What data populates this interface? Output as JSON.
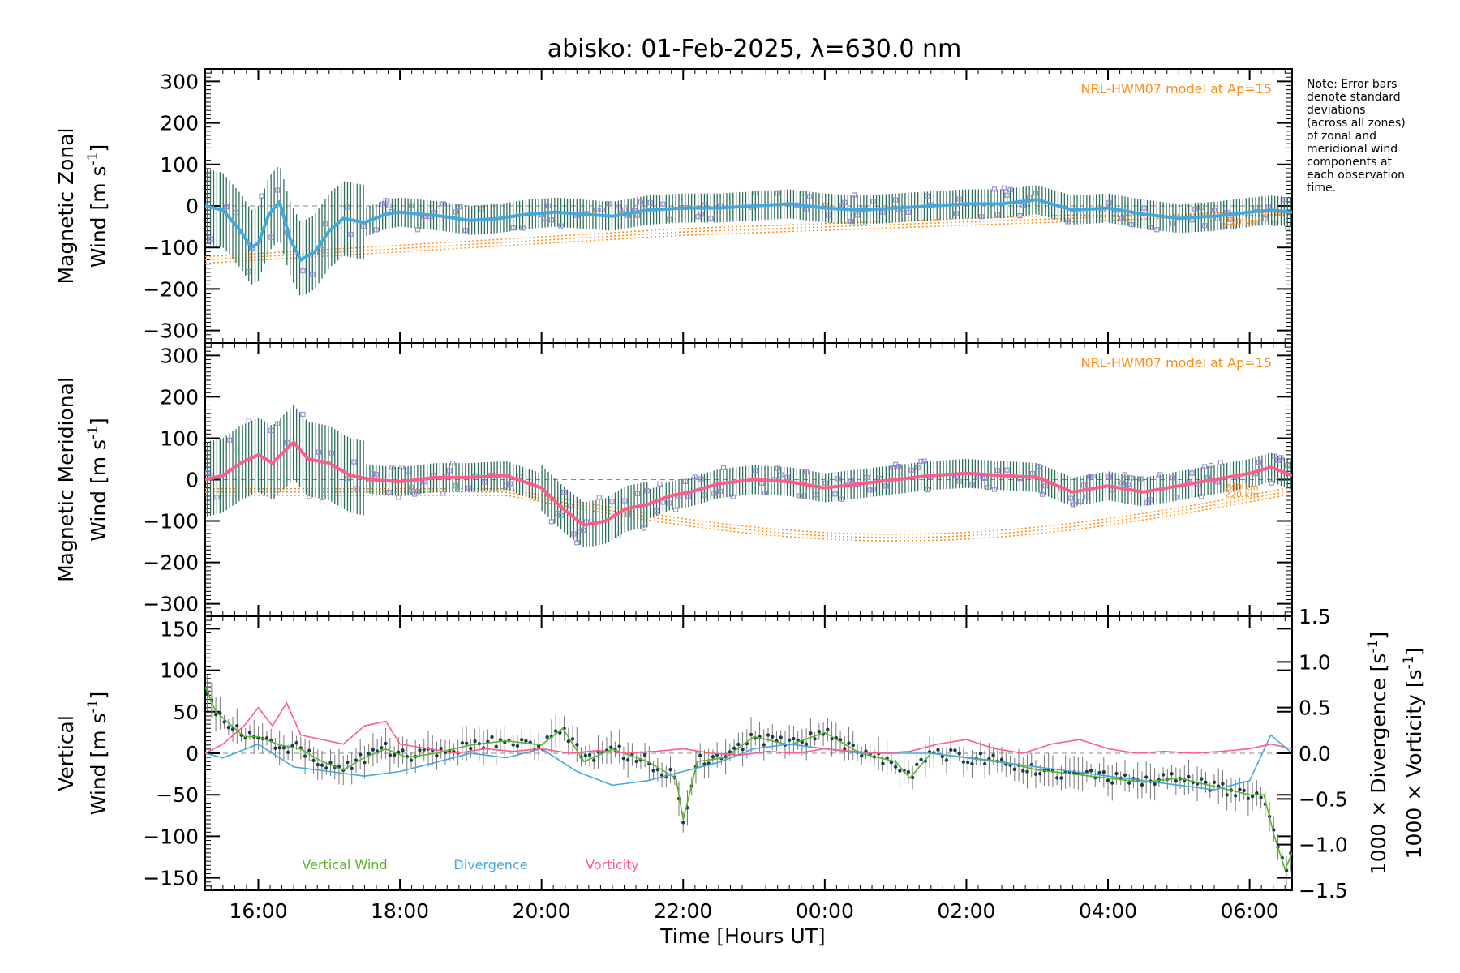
{
  "title": "abisko: 01-Feb-2025, λ=630.0 nm",
  "note": [
    "Note: Error bars",
    "denote standard",
    "deviations",
    "(across all zones)",
    "of zonal and",
    "meridional wind",
    "components at",
    "each observation",
    "time."
  ],
  "colors": {
    "zonal": "#44a8dc",
    "meridional": "#ff5c8a",
    "vertical": "#5ab42a",
    "divergence": "#44a8dc",
    "vorticity": "#ff5c8a",
    "model": "#ff8c1a",
    "zones": "#9b8fdc",
    "errorbar": "#2f6e5a"
  },
  "x_axis": {
    "label": "Time [Hours UT]",
    "range_hours": [
      15.25,
      30.6
    ],
    "ticks": [
      {
        "h": 16,
        "label": "16:00"
      },
      {
        "h": 18,
        "label": "18:00"
      },
      {
        "h": 20,
        "label": "20:00"
      },
      {
        "h": 22,
        "label": "22:00"
      },
      {
        "h": 24,
        "label": "00:00"
      },
      {
        "h": 26,
        "label": "02:00"
      },
      {
        "h": 28,
        "label": "04:00"
      },
      {
        "h": 30,
        "label": "06:00"
      }
    ]
  },
  "panels": {
    "zonal": {
      "ylabel_line1": "Magnetic Zonal",
      "ylabel_line2": "Wind [m s",
      "ylabel_sup": "-1",
      "ylabel_end": "]",
      "ylim": [
        -330,
        330
      ],
      "yticks": [
        300,
        200,
        100,
        0,
        -100,
        -200,
        -300
      ],
      "model_label": "NRL-HWM07 model at Ap=15",
      "alt_labels": [
        "220 km"
      ]
    },
    "meridional": {
      "ylabel_line1": "Magnetic Meridional",
      "ylabel_line2": "Wind [m s",
      "ylabel_sup": "-1",
      "ylabel_end": "]",
      "ylim": [
        -330,
        330
      ],
      "yticks": [
        300,
        200,
        100,
        0,
        -100,
        -200,
        -300
      ],
      "model_label": "NRL-HWM07 model at Ap=15",
      "alt_labels": [
        "240 km",
        "220 km"
      ]
    },
    "vertical": {
      "ylabel_line1": "Vertical",
      "ylabel_line2": "Wind [m s",
      "ylabel_sup": "-1",
      "ylabel_end": "]",
      "ylim": [
        -165,
        165
      ],
      "yticks": [
        150,
        100,
        50,
        0,
        -50,
        -100,
        -150
      ],
      "right_ylim": [
        -1.5,
        1.5
      ],
      "right_yticks": [
        {
          "v": 1.5,
          "label": "1.5"
        },
        {
          "v": 1.0,
          "label": "1.0"
        },
        {
          "v": 0.5,
          "label": "0.5"
        },
        {
          "v": 0.0,
          "label": "0.0"
        },
        {
          "v": -0.5,
          "label": "−0.5"
        },
        {
          "v": -1.0,
          "label": "−1.0"
        },
        {
          "v": -1.5,
          "label": "−1.5"
        }
      ],
      "right_label_div": "1000 × Divergence [s",
      "right_label_vor": "1000 × Vorticity [s",
      "right_sup": "-1",
      "right_end": "]",
      "legend": [
        "Vertical Wind",
        "Divergence",
        "Vorticity"
      ]
    }
  },
  "chart_data": [
    {
      "type": "line",
      "name": "Magnetic Zonal Wind",
      "x_hours": [
        15.25,
        15.5,
        15.75,
        15.9,
        16.0,
        16.15,
        16.3,
        16.45,
        16.6,
        16.8,
        17.0,
        17.2,
        17.5,
        17.8,
        18.0,
        18.3,
        18.6,
        19.0,
        19.4,
        19.8,
        20.2,
        20.6,
        21.0,
        21.5,
        22.0,
        22.5,
        23.0,
        23.5,
        24.0,
        24.5,
        25.0,
        25.5,
        26.0,
        26.5,
        27.0,
        27.5,
        28.0,
        28.5,
        29.0,
        29.5,
        30.0,
        30.3,
        30.6
      ],
      "y": [
        0,
        -10,
        -60,
        -100,
        -90,
        -20,
        10,
        -80,
        -130,
        -110,
        -60,
        -30,
        -40,
        -20,
        -15,
        -20,
        -25,
        -35,
        -30,
        -20,
        -15,
        -20,
        -25,
        -10,
        -5,
        -5,
        0,
        5,
        -5,
        -10,
        -5,
        0,
        5,
        5,
        15,
        -10,
        -5,
        -20,
        -30,
        -25,
        -15,
        -10,
        -15
      ]
    },
    {
      "type": "line",
      "name": "Magnetic Meridional Wind",
      "x_hours": [
        15.25,
        15.5,
        15.75,
        16.0,
        16.2,
        16.5,
        16.7,
        17.0,
        17.3,
        17.6,
        18.0,
        18.5,
        19.0,
        19.5,
        20.0,
        20.3,
        20.6,
        20.9,
        21.2,
        21.5,
        21.8,
        22.1,
        22.5,
        23.0,
        23.5,
        24.0,
        24.5,
        25.0,
        25.5,
        26.0,
        26.5,
        27.0,
        27.5,
        28.0,
        28.5,
        29.0,
        29.5,
        30.0,
        30.3,
        30.6
      ],
      "y": [
        0,
        10,
        40,
        60,
        40,
        90,
        50,
        40,
        10,
        0,
        -5,
        5,
        5,
        10,
        -20,
        -70,
        -110,
        -100,
        -70,
        -60,
        -40,
        -30,
        -10,
        0,
        -5,
        -20,
        -10,
        0,
        10,
        15,
        10,
        5,
        -30,
        -15,
        -30,
        -15,
        0,
        15,
        30,
        10
      ]
    },
    {
      "type": "line",
      "name": "Vertical Wind",
      "x_hours": [
        15.25,
        15.4,
        15.6,
        15.8,
        16.0,
        16.3,
        16.6,
        16.9,
        17.2,
        17.5,
        17.8,
        18.1,
        18.5,
        19.0,
        19.5,
        20.0,
        20.3,
        20.6,
        21.0,
        21.5,
        21.9,
        22.0,
        22.2,
        22.6,
        23.0,
        23.5,
        24.0,
        24.5,
        25.0,
        25.2,
        25.5,
        26.0,
        26.5,
        27.0,
        27.5,
        28.0,
        28.5,
        29.0,
        29.5,
        30.0,
        30.2,
        30.35,
        30.5,
        30.6
      ],
      "y": [
        80,
        50,
        35,
        20,
        20,
        10,
        5,
        -10,
        -20,
        -5,
        5,
        -5,
        0,
        10,
        15,
        10,
        30,
        -10,
        5,
        -10,
        -30,
        -80,
        -10,
        -5,
        20,
        10,
        25,
        0,
        -10,
        -30,
        0,
        -5,
        -10,
        -20,
        -25,
        -30,
        -35,
        -30,
        -40,
        -50,
        -50,
        -100,
        -140,
        -120
      ]
    },
    {
      "type": "line",
      "name": "Divergence",
      "x_hours": [
        15.25,
        15.5,
        16.0,
        16.5,
        17.0,
        17.5,
        18.0,
        18.5,
        19.0,
        19.5,
        20.0,
        20.5,
        21.0,
        21.5,
        22.0,
        22.5,
        23.0,
        23.5,
        24.0,
        24.5,
        25.0,
        25.5,
        26.0,
        26.5,
        27.0,
        27.5,
        28.0,
        28.5,
        29.0,
        29.5,
        30.0,
        30.3,
        30.6
      ],
      "y": [
        0.0,
        -0.05,
        0.1,
        -0.15,
        -0.2,
        -0.25,
        -0.2,
        -0.1,
        0.0,
        -0.05,
        0.05,
        -0.2,
        -0.35,
        -0.3,
        -0.2,
        -0.1,
        0.05,
        0.1,
        0.05,
        0.0,
        0.0,
        0.0,
        -0.05,
        -0.1,
        -0.15,
        -0.2,
        -0.25,
        -0.3,
        -0.35,
        -0.4,
        -0.3,
        0.2,
        0.0
      ]
    },
    {
      "type": "line",
      "name": "Vorticity",
      "x_hours": [
        15.25,
        15.5,
        15.8,
        16.0,
        16.2,
        16.4,
        16.6,
        16.9,
        17.2,
        17.5,
        17.8,
        18.0,
        18.4,
        18.8,
        19.2,
        19.6,
        20.0,
        20.4,
        20.8,
        21.2,
        21.6,
        22.0,
        22.4,
        22.8,
        23.2,
        23.6,
        24.0,
        24.4,
        24.8,
        25.2,
        25.6,
        26.0,
        26.4,
        26.8,
        27.2,
        27.6,
        28.0,
        28.4,
        28.8,
        29.2,
        29.6,
        30.0,
        30.3,
        30.6
      ],
      "y": [
        0.0,
        0.1,
        0.3,
        0.5,
        0.3,
        0.55,
        0.2,
        0.15,
        0.1,
        0.3,
        0.35,
        0.1,
        0.05,
        0.0,
        0.05,
        0.02,
        0.05,
        0.0,
        0.03,
        0.0,
        0.02,
        0.05,
        0.0,
        -0.02,
        0.02,
        0.0,
        0.05,
        0.02,
        0.0,
        0.02,
        0.1,
        0.15,
        0.05,
        0.0,
        0.1,
        0.15,
        0.05,
        0.0,
        0.02,
        0.0,
        0.02,
        0.05,
        0.1,
        0.05
      ]
    }
  ]
}
